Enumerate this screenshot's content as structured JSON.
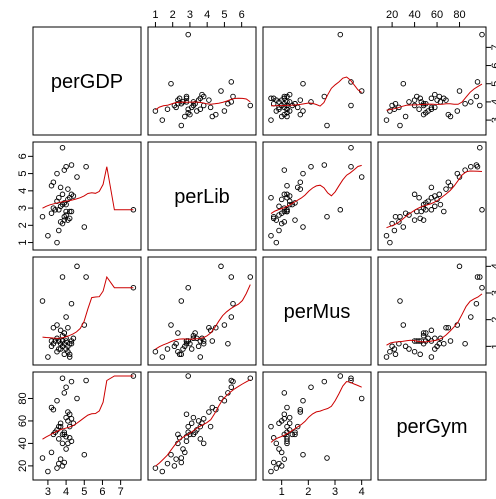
{
  "chart_data": {
    "type": "scatter",
    "kind": "scatterplot-matrix",
    "variables": [
      "perGDP",
      "perLib",
      "perMus",
      "perGym"
    ],
    "ranges": {
      "perGDP": [
        2.4,
        7.9
      ],
      "perLib": [
        0.8,
        6.6
      ],
      "perMus": [
        0.45,
        4.2
      ],
      "perGym": [
        11,
        100
      ]
    },
    "ticks": {
      "perGDP": [
        3,
        4,
        5,
        6,
        7
      ],
      "perLib": [
        1,
        2,
        3,
        4,
        5,
        6
      ],
      "perMus": [
        1,
        2,
        3,
        4
      ],
      "perGym": [
        20,
        40,
        60,
        80
      ]
    },
    "smoother_color": "#cc0000",
    "point_color": "#000000",
    "data": {
      "perGDP": [
        3.0,
        3.5,
        3.6,
        3.7,
        3.8,
        3.9,
        4.0,
        4.1,
        4.2,
        4.3,
        3.2,
        3.3,
        3.4,
        3.5,
        3.6,
        3.7,
        3.8,
        3.9,
        4.0,
        4.1,
        4.2,
        4.3,
        4.4,
        3.6,
        3.8,
        4.0,
        4.2,
        3.9,
        4.1,
        3.7,
        3.3,
        3.5,
        4.0,
        4.3,
        3.2,
        3.8,
        2.7,
        3.9,
        4.6,
        5.1,
        5.0,
        7.7
      ],
      "perLib": [
        1.4,
        1.0,
        1.7,
        2.2,
        2.1,
        2.5,
        2.6,
        2.3,
        2.4,
        2.8,
        2.7,
        3.0,
        2.9,
        3.4,
        2.9,
        3.1,
        3.2,
        3.3,
        2.8,
        3.5,
        3.6,
        3.8,
        3.7,
        3.6,
        3.8,
        3.2,
        2.8,
        2.3,
        4.1,
        4.2,
        4.5,
        5.0,
        5.4,
        5.5,
        4.3,
        6.5,
        2.5,
        5.2,
        4.8,
        5.4,
        1.9,
        2.9
      ],
      "perMus": [
        0.6,
        0.8,
        0.9,
        1.1,
        1.0,
        0.7,
        0.9,
        0.8,
        0.7,
        1.2,
        1.0,
        1.1,
        1.2,
        1.3,
        1.2,
        0.9,
        1.4,
        1.5,
        1.2,
        1.0,
        0.6,
        1.1,
        1.3,
        1.2,
        1.2,
        1.3,
        1.1,
        1.5,
        1.7,
        1.6,
        1.7,
        1.8,
        2.1,
        2.6,
        1.2,
        3.6,
        2.7,
        1.1,
        4.0,
        3.6,
        1.8,
        3.2
      ],
      "perGym": [
        15,
        18,
        22,
        26,
        20,
        23,
        35,
        40,
        45,
        42,
        32,
        48,
        50,
        52,
        55,
        58,
        48,
        50,
        46,
        60,
        55,
        62,
        58,
        44,
        40,
        63,
        66,
        48,
        68,
        55,
        70,
        78,
        90,
        95,
        72,
        98,
        27,
        85,
        80,
        96,
        30,
        100
      ]
    }
  }
}
